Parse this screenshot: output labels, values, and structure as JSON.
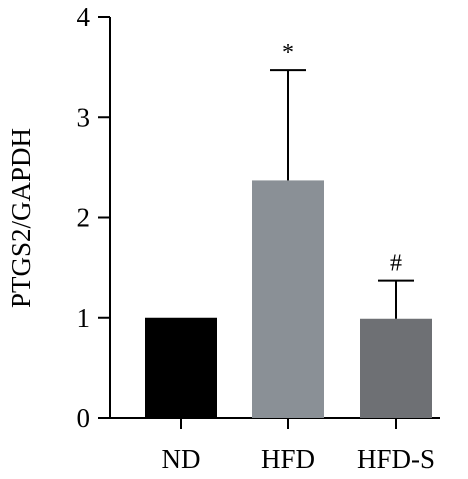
{
  "chart_data": {
    "type": "bar",
    "categories": [
      "ND",
      "HFD",
      "HFD-S"
    ],
    "values": [
      1.0,
      2.37,
      0.99
    ],
    "error_upper": [
      1.0,
      3.47,
      1.37
    ],
    "annotations": [
      "",
      "*",
      "#"
    ],
    "bar_colors": [
      "#000000",
      "#8a9096",
      "#6e7074"
    ],
    "xlabel": "",
    "ylabel": "PTGS2/GAPDH",
    "ylim": [
      0,
      4
    ],
    "yticks": [
      0,
      1,
      2,
      3,
      4
    ],
    "ytick_labels": [
      "0",
      "1",
      "2",
      "3",
      "4"
    ],
    "grid": false,
    "legend": "none"
  }
}
